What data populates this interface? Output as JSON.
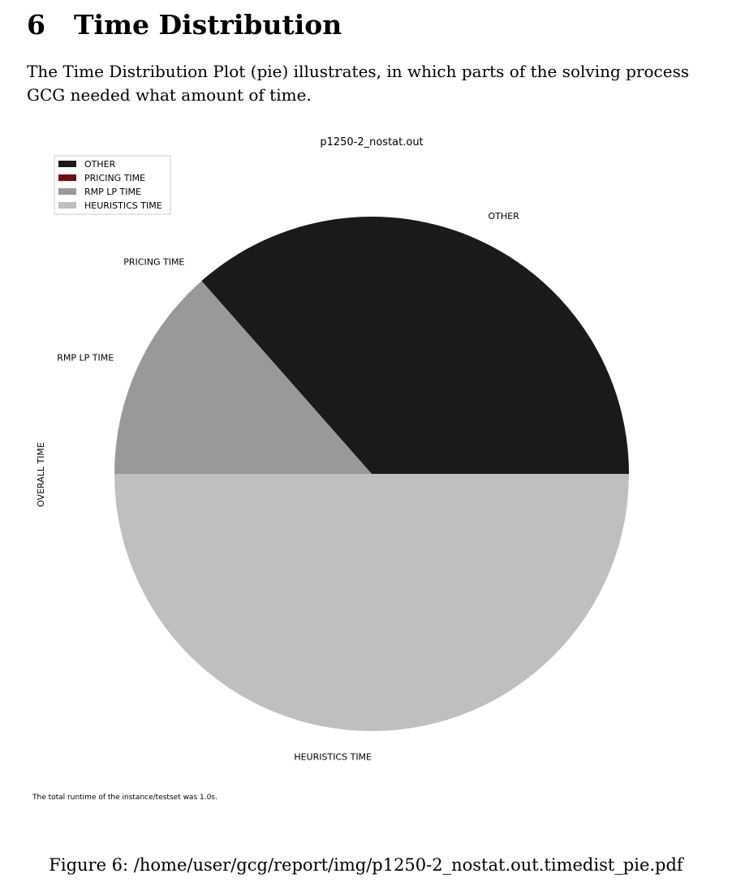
{
  "section": {
    "number": "6",
    "title": "Time Distribution"
  },
  "intro_text": "The Time Distribution Plot (pie) illustrates, in which parts of the solving process GCG needed what amount of time.",
  "chart_data": {
    "type": "pie",
    "title": "p1250-2_nostat.out",
    "ylabel": "OVERALL TIME",
    "legend_position": "top-left",
    "slices": [
      {
        "label": "OTHER",
        "value": 36.5,
        "color": "#1a1a1a"
      },
      {
        "label": "PRICING TIME",
        "value": 0.0,
        "color": "#7a0a0a"
      },
      {
        "label": "RMP LP TIME",
        "value": 13.5,
        "color": "#999999"
      },
      {
        "label": "HEURISTICS TIME",
        "value": 50.0,
        "color": "#bfbfbf"
      }
    ],
    "note": "The total runtime of the instance/testset was 1.0s."
  },
  "caption": "Figure 6:  /home/user/gcg/report/img/p1250-2_nostat.out.timedist_pie.pdf"
}
